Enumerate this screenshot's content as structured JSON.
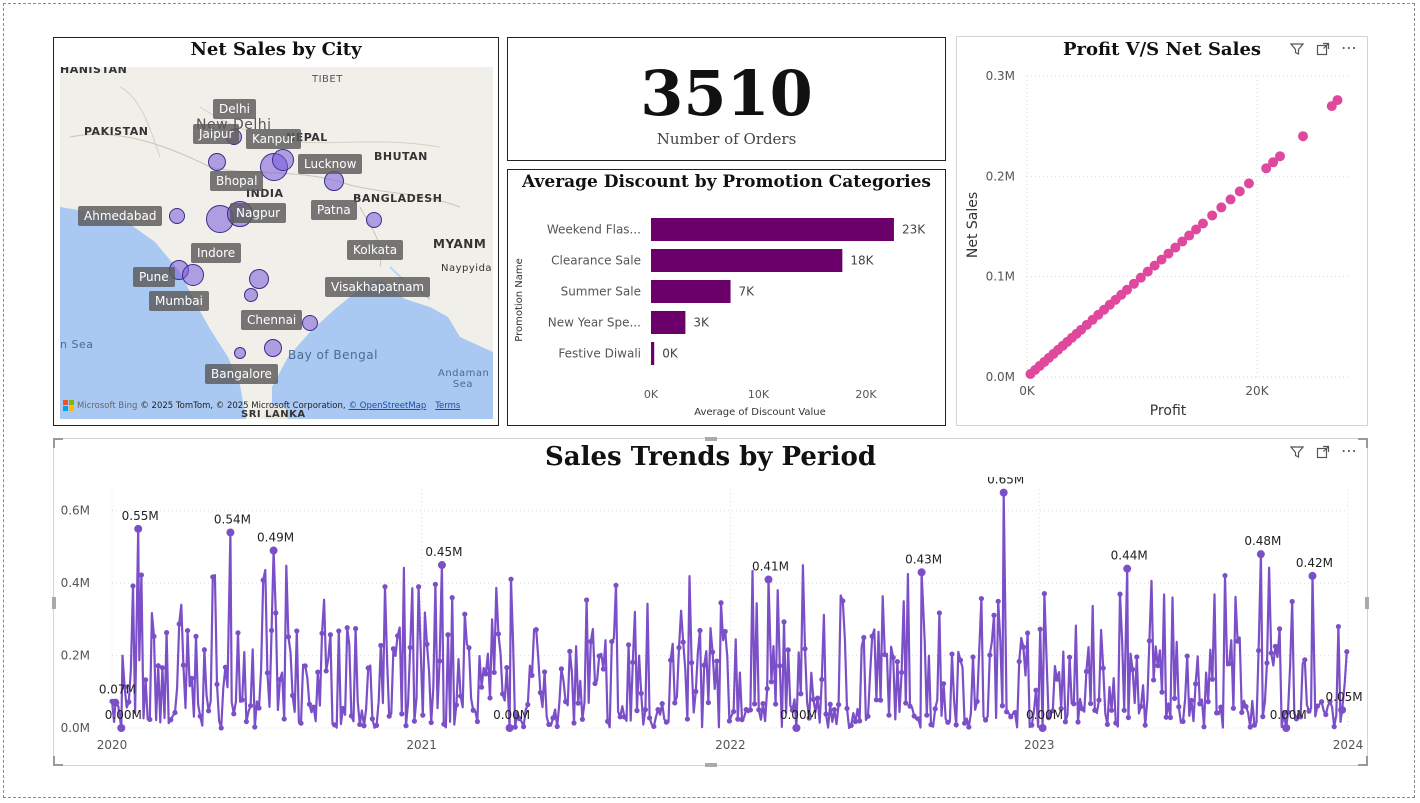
{
  "map": {
    "title": "Net Sales by City",
    "geo_labels": {
      "afghanistan": "HANISTAN",
      "tibet": "TIBET",
      "pakistan": "PAKISTAN",
      "nepal": "NEPAL",
      "bhutan": "BHUTAN",
      "bangladesh": "BANGLADESH",
      "myanmar": "MYANM",
      "naypyida": "Naypyida",
      "india": "INDIA",
      "sea": "n Sea",
      "bay": "Bay of Bengal",
      "andaman": "Andaman Sea",
      "srilanka": "SRI LANKA",
      "newdelhi": "New Delhi"
    },
    "cities": [
      "Delhi",
      "Jaipur",
      "Kanpur",
      "Lucknow",
      "Bhopal",
      "Ahmedabad",
      "Nagpur",
      "Patna",
      "Indore",
      "Kolkata",
      "Pune",
      "Mumbai",
      "Visakhapatnam",
      "Chennai",
      "Bangalore"
    ],
    "attribution": {
      "brand": "Microsoft Bing",
      "text": "© 2025 TomTom, © 2025 Microsoft Corporation,",
      "osm": "© OpenStreetMap",
      "terms": "Terms"
    },
    "colors": {
      "bubble": "#7a5ae0",
      "water": "#a9c8f2",
      "land": "#f1efe9"
    }
  },
  "kpi": {
    "value": "3510",
    "label": "Number of Orders"
  },
  "discount_chart": {
    "title": "Average Discount by Promotion Categories",
    "color": "#6b006b",
    "chart_data": {
      "type": "bar",
      "orientation": "horizontal",
      "categories": [
        "Weekend Flas...",
        "Clearance Sale",
        "Summer Sale",
        "New Year Spe...",
        "Festive Diwali"
      ],
      "values": [
        22600,
        17800,
        7400,
        3200,
        300
      ],
      "data_labels": [
        "23K",
        "18K",
        "7K",
        "3K",
        "0K"
      ],
      "xlabel": "Average of Discount Value",
      "ylabel": "Promotion Name",
      "xlim": [
        0,
        24000
      ],
      "xticks": [
        "0K",
        "10K",
        "20K"
      ]
    }
  },
  "scatter_chart": {
    "title": "Profit V/S Net Sales",
    "color": "#e0489e",
    "chart_data": {
      "type": "scatter",
      "xlabel": "Profit",
      "ylabel": "Net Sales",
      "xlim": [
        0,
        28000
      ],
      "ylim": [
        0,
        300000
      ],
      "xticks": [
        "0K",
        "20K"
      ],
      "yticks": [
        "0.0M",
        "0.1M",
        "0.2M",
        "0.3M"
      ],
      "x": [
        300,
        700,
        1100,
        1500,
        1900,
        2300,
        2700,
        3100,
        3500,
        3900,
        4300,
        4700,
        5200,
        5700,
        6200,
        6700,
        7200,
        7700,
        8200,
        8700,
        9300,
        9900,
        10500,
        11100,
        11700,
        12300,
        12900,
        13500,
        14100,
        14700,
        15300,
        16100,
        16900,
        17700,
        18500,
        19300,
        20800,
        21400,
        22000,
        24000,
        26500,
        27000
      ],
      "y": [
        3000,
        7000,
        11000,
        15000,
        19000,
        23000,
        27000,
        31000,
        35000,
        39000,
        43000,
        47000,
        52000,
        57000,
        62000,
        67000,
        72000,
        77000,
        82000,
        87000,
        93000,
        99000,
        105000,
        111000,
        117000,
        123000,
        129000,
        135000,
        141000,
        147000,
        153000,
        161000,
        169000,
        177000,
        185000,
        193000,
        208000,
        214000,
        220000,
        240000,
        270000,
        276000
      ]
    }
  },
  "trend_chart": {
    "title": "Sales Trends by Period",
    "color": "#7b4fc7",
    "chart_data": {
      "type": "line",
      "xlabel": "",
      "ylabel": "",
      "xlim": [
        "2020-01-01",
        "2024-01-01"
      ],
      "ylim": [
        0,
        0.66
      ],
      "xticks": [
        "2020",
        "2021",
        "2022",
        "2023",
        "2024"
      ],
      "yticks": [
        "0.0M",
        "0.2M",
        "0.4M",
        "0.6M"
      ],
      "peaks": [
        {
          "date": "2020-01-05",
          "value": 0.07,
          "label": "0.07M"
        },
        {
          "date": "2020-01-12",
          "value": 0.0,
          "label": "0.00M"
        },
        {
          "date": "2020-02-01",
          "value": 0.55,
          "label": "0.55M"
        },
        {
          "date": "2020-05-20",
          "value": 0.54,
          "label": "0.54M"
        },
        {
          "date": "2020-07-10",
          "value": 0.49,
          "label": "0.49M"
        },
        {
          "date": "2021-01-25",
          "value": 0.45,
          "label": "0.45M"
        },
        {
          "date": "2021-04-15",
          "value": 0.0,
          "label": "0.00M"
        },
        {
          "date": "2022-02-15",
          "value": 0.41,
          "label": "0.41M"
        },
        {
          "date": "2022-03-20",
          "value": 0.0,
          "label": "0.00M"
        },
        {
          "date": "2022-08-15",
          "value": 0.43,
          "label": "0.43M"
        },
        {
          "date": "2022-11-20",
          "value": 0.65,
          "label": "0.65M"
        },
        {
          "date": "2023-01-05",
          "value": 0.0,
          "label": "0.00M"
        },
        {
          "date": "2023-04-15",
          "value": 0.44,
          "label": "0.44M"
        },
        {
          "date": "2023-09-20",
          "value": 0.48,
          "label": "0.48M"
        },
        {
          "date": "2023-10-20",
          "value": 0.0,
          "label": "0.00M"
        },
        {
          "date": "2023-11-20",
          "value": 0.42,
          "label": "0.42M"
        },
        {
          "date": "2023-12-25",
          "value": 0.05,
          "label": "0.05M"
        }
      ]
    }
  }
}
